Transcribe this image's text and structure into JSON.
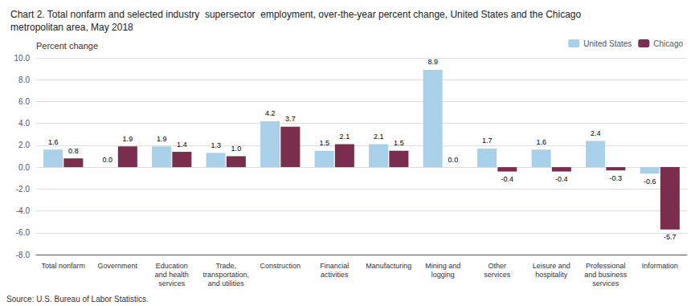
{
  "chart_data": {
    "type": "bar",
    "title": "Chart 2. Total nonfarm and selected industry  supersector  employment, over-the-year percent change, United States and the Chicago\nmetropolitan area, May 2018",
    "ylabel": "Percent change",
    "annotations": [
      "Source: U.S. Bureau of Labor Statistics."
    ],
    "categories": [
      "Total nonfarm",
      "Government",
      "Education\nand health\nservices",
      "Trade,\ntransportation,\nand utilities",
      "Construction",
      "Financial\nactivities",
      "Manufacturing",
      "Mining and\nlogging",
      "Other\nservices",
      "Leisure and\nhospitality",
      "Professional\nand business\nservices",
      "Information"
    ],
    "series": [
      {
        "name": "United States",
        "color": "#A8D0E8",
        "values": [
          1.6,
          0.0,
          1.9,
          1.3,
          4.2,
          1.5,
          2.1,
          8.9,
          1.7,
          1.6,
          2.4,
          -0.6
        ],
        "value_labels": [
          "1.6",
          "0.0",
          "1.9",
          "1.3",
          "4.2",
          "1.5",
          "2.1",
          "8.9",
          "1.7",
          "1.6",
          "2.4",
          "-0.6"
        ]
      },
      {
        "name": "Chicago",
        "color": "#7B2D4E",
        "values": [
          0.8,
          1.9,
          1.4,
          1.0,
          3.7,
          2.1,
          1.5,
          0.0,
          -0.4,
          -0.4,
          -0.3,
          -5.7
        ],
        "value_labels": [
          "0.8",
          "1.9",
          "1.4",
          "1.0",
          "3.7",
          "2.1",
          "1.5",
          "0.0",
          "-0.4",
          "-0.4",
          "-0.3",
          "-5.7"
        ]
      }
    ],
    "ylim": [
      -8.0,
      10.0
    ],
    "yticks": [
      {
        "value": -8.0,
        "label": "-8.0"
      },
      {
        "value": -6.0,
        "label": "-6.0"
      },
      {
        "value": -4.0,
        "label": "-4.0"
      },
      {
        "value": -2.0,
        "label": "-2.0"
      },
      {
        "value": 0.0,
        "label": "0.0"
      },
      {
        "value": 2.0,
        "label": "2.0"
      },
      {
        "value": 4.0,
        "label": "4.0"
      },
      {
        "value": 6.0,
        "label": "6.0"
      },
      {
        "value": 8.0,
        "label": "8.0"
      },
      {
        "value": 10.0,
        "label": "10.0"
      }
    ],
    "grid": true,
    "legend": "upper right",
    "data_labels": true
  }
}
